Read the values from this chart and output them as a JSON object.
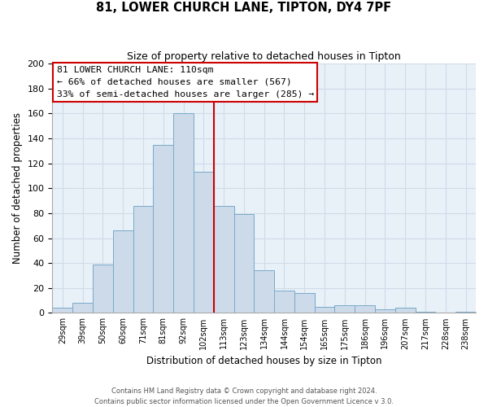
{
  "title": "81, LOWER CHURCH LANE, TIPTON, DY4 7PF",
  "subtitle": "Size of property relative to detached houses in Tipton",
  "xlabel": "Distribution of detached houses by size in Tipton",
  "ylabel": "Number of detached properties",
  "bar_labels": [
    "29sqm",
    "39sqm",
    "50sqm",
    "60sqm",
    "71sqm",
    "81sqm",
    "92sqm",
    "102sqm",
    "113sqm",
    "123sqm",
    "134sqm",
    "144sqm",
    "154sqm",
    "165sqm",
    "175sqm",
    "186sqm",
    "196sqm",
    "207sqm",
    "217sqm",
    "228sqm",
    "238sqm"
  ],
  "bar_values": [
    4,
    8,
    39,
    66,
    86,
    135,
    160,
    113,
    86,
    79,
    34,
    18,
    16,
    5,
    6,
    6,
    3,
    4,
    1,
    0,
    1
  ],
  "bar_color": "#ccdaea",
  "bar_edge_color": "#7aaac8",
  "vline_color": "#cc0000",
  "annotation_title": "81 LOWER CHURCH LANE: 110sqm",
  "annotation_line1": "← 66% of detached houses are smaller (567)",
  "annotation_line2": "33% of semi-detached houses are larger (285) →",
  "annotation_box_color": "#ffffff",
  "annotation_box_edge": "#cc0000",
  "ylim": [
    0,
    200
  ],
  "yticks": [
    0,
    20,
    40,
    60,
    80,
    100,
    120,
    140,
    160,
    180,
    200
  ],
  "grid_color": "#d0dce8",
  "bg_color": "#e8f0f8",
  "footer1": "Contains HM Land Registry data © Crown copyright and database right 2024.",
  "footer2": "Contains public sector information licensed under the Open Government Licence v 3.0."
}
